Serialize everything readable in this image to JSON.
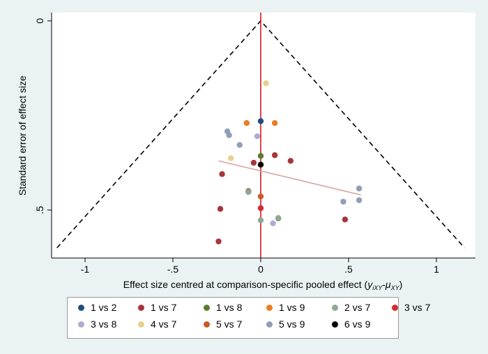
{
  "chart_data": {
    "type": "scatter",
    "title": "",
    "xlabel": "Effect size centred at comparison-specific pooled effect",
    "xlabel_math": {
      "open": "(",
      "y": "y",
      "y_sub": "iXY",
      "dash": "-",
      "mu": "μ",
      "mu_sub": "XY",
      "close": ")"
    },
    "ylabel": "Standard error of effect size",
    "xlim": [
      -1.2,
      1.2
    ],
    "ylim": [
      0,
      0.6
    ],
    "y_reversed": true,
    "x_ticks": [
      -1,
      -0.5,
      0,
      0.5,
      1
    ],
    "x_tick_labels": [
      "-1",
      "-.5",
      "0",
      ".5",
      "1"
    ],
    "y_ticks": [
      0,
      0.5
    ],
    "y_tick_labels": [
      "0",
      ".5"
    ],
    "grid": false,
    "legend_placement": "bottom",
    "funnel": {
      "apex": [
        0,
        0
      ],
      "left_end": [
        -1.16,
        0.6
      ],
      "right_end": [
        1.16,
        0.6
      ],
      "style": "dashed",
      "color": "#000000"
    },
    "reference_line": {
      "x": 0,
      "color": "#d4161c"
    },
    "regression_line": {
      "x": [
        -0.24,
        0.57
      ],
      "y": [
        0.37,
        0.46
      ],
      "color": "#d9a3a3"
    },
    "series": [
      {
        "name": "1 vs 2",
        "color": "#1d4e80",
        "points": [
          [
            0,
            0.265
          ]
        ]
      },
      {
        "name": "1 vs 7",
        "color": "#a8353b",
        "points": [
          [
            0.08,
            0.355
          ],
          [
            0.17,
            0.37
          ],
          [
            -0.04,
            0.375
          ],
          [
            -0.22,
            0.405
          ],
          [
            -0.07,
            0.45
          ],
          [
            -0.23,
            0.497
          ],
          [
            0.48,
            0.525
          ],
          [
            -0.24,
            0.583
          ]
        ]
      },
      {
        "name": "1 vs 8",
        "color": "#587d2e",
        "points": [
          [
            0,
            0.357
          ],
          [
            -0.07,
            0.452
          ],
          [
            0.1,
            0.522
          ]
        ]
      },
      {
        "name": "1 vs 9",
        "color": "#ec7c1f",
        "points": [
          [
            -0.08,
            0.27
          ],
          [
            0.08,
            0.27
          ]
        ]
      },
      {
        "name": "2 vs 7",
        "color": "#8fa795",
        "points": [
          [
            -0.07,
            0.452
          ],
          [
            0,
            0.527
          ],
          [
            0.1,
            0.521
          ]
        ]
      },
      {
        "name": "3 vs 7",
        "color": "#d42b34",
        "points": [
          [
            0,
            0.495
          ]
        ]
      },
      {
        "name": "3 vs 8",
        "color": "#b1a9d4",
        "points": [
          [
            -0.02,
            0.305
          ],
          [
            0.07,
            0.535
          ]
        ]
      },
      {
        "name": "4 vs 7",
        "color": "#e4d28e",
        "points": [
          [
            0.03,
            0.165
          ],
          [
            -0.17,
            0.363
          ]
        ]
      },
      {
        "name": "5 vs 7",
        "color": "#c75c2a",
        "points": [
          [
            0,
            0.464
          ]
        ]
      },
      {
        "name": "5 vs 9",
        "color": "#909fb6",
        "points": [
          [
            -0.19,
            0.292
          ],
          [
            -0.18,
            0.302
          ],
          [
            -0.12,
            0.328
          ],
          [
            0.56,
            0.443
          ],
          [
            0.56,
            0.474
          ],
          [
            0.47,
            0.478
          ]
        ]
      },
      {
        "name": "6 vs 9",
        "color": "#000000",
        "points": [
          [
            0,
            0.38
          ]
        ]
      }
    ]
  }
}
